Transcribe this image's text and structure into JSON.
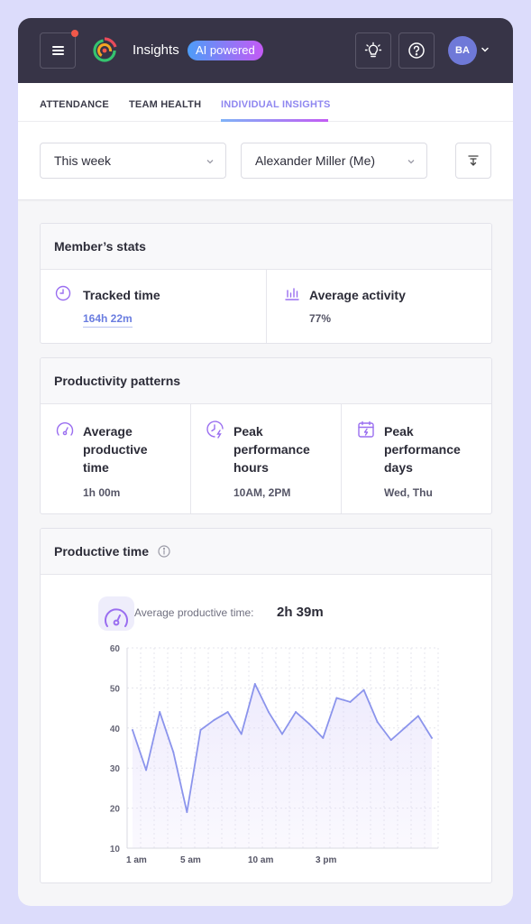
{
  "header": {
    "app_title": "Insights",
    "ai_badge": "AI powered",
    "avatar_initials": "BA",
    "icons": [
      "menu-icon",
      "logo-icon",
      "lightbulb-icon",
      "help-icon",
      "chevron-down-icon"
    ]
  },
  "tabs": [
    {
      "label": "ATTENDANCE",
      "active": false
    },
    {
      "label": "TEAM HEALTH",
      "active": false
    },
    {
      "label": "INDIVIDUAL INSIGHTS",
      "active": true
    }
  ],
  "filters": {
    "period": "This week",
    "member": "Alexander Miller (Me)",
    "export_icon": "download-icon"
  },
  "member_stats": {
    "title": "Member’s stats",
    "tracked_time": {
      "label": "Tracked time",
      "value": "164h 22m",
      "icon": "clock-icon"
    },
    "average_activity": {
      "label": "Average activity",
      "value": "77%",
      "icon": "bar-chart-icon"
    }
  },
  "productivity_patterns": {
    "title": "Productivity patterns",
    "items": [
      {
        "label_lines": [
          "Average",
          "productive",
          "time"
        ],
        "value": "1h 00m",
        "icon": "gauge-icon"
      },
      {
        "label_lines": [
          "Peak",
          "performance",
          "hours"
        ],
        "value": "10AM, 2PM",
        "icon": "flash-clock-icon"
      },
      {
        "label_lines": [
          "Peak",
          "performance",
          "days"
        ],
        "value": "Wed, Thu",
        "icon": "calendar-flash-icon"
      }
    ]
  },
  "productive_time": {
    "title": "Productive time",
    "avg_label": "Average productive time:",
    "avg_value": "2h 39m"
  },
  "colors": {
    "accent": "#8f87f0",
    "line": "#8b94ec",
    "header_bg": "#373447"
  },
  "chart_data": {
    "type": "area",
    "x_tick_labels": [
      "1 am",
      "5 am",
      "10  am",
      "3 pm"
    ],
    "y_ticks": [
      10,
      20,
      30,
      40,
      50,
      60
    ],
    "ylim": [
      10,
      60
    ],
    "grid": true,
    "series": [
      {
        "values": [
          39.5,
          29.5,
          44,
          34,
          19,
          39.5,
          42,
          44,
          38.5,
          51,
          44,
          38.5,
          44,
          41,
          37.5,
          47.5,
          46.5,
          49.5,
          41.5,
          37,
          40,
          43,
          37.5
        ]
      }
    ]
  }
}
